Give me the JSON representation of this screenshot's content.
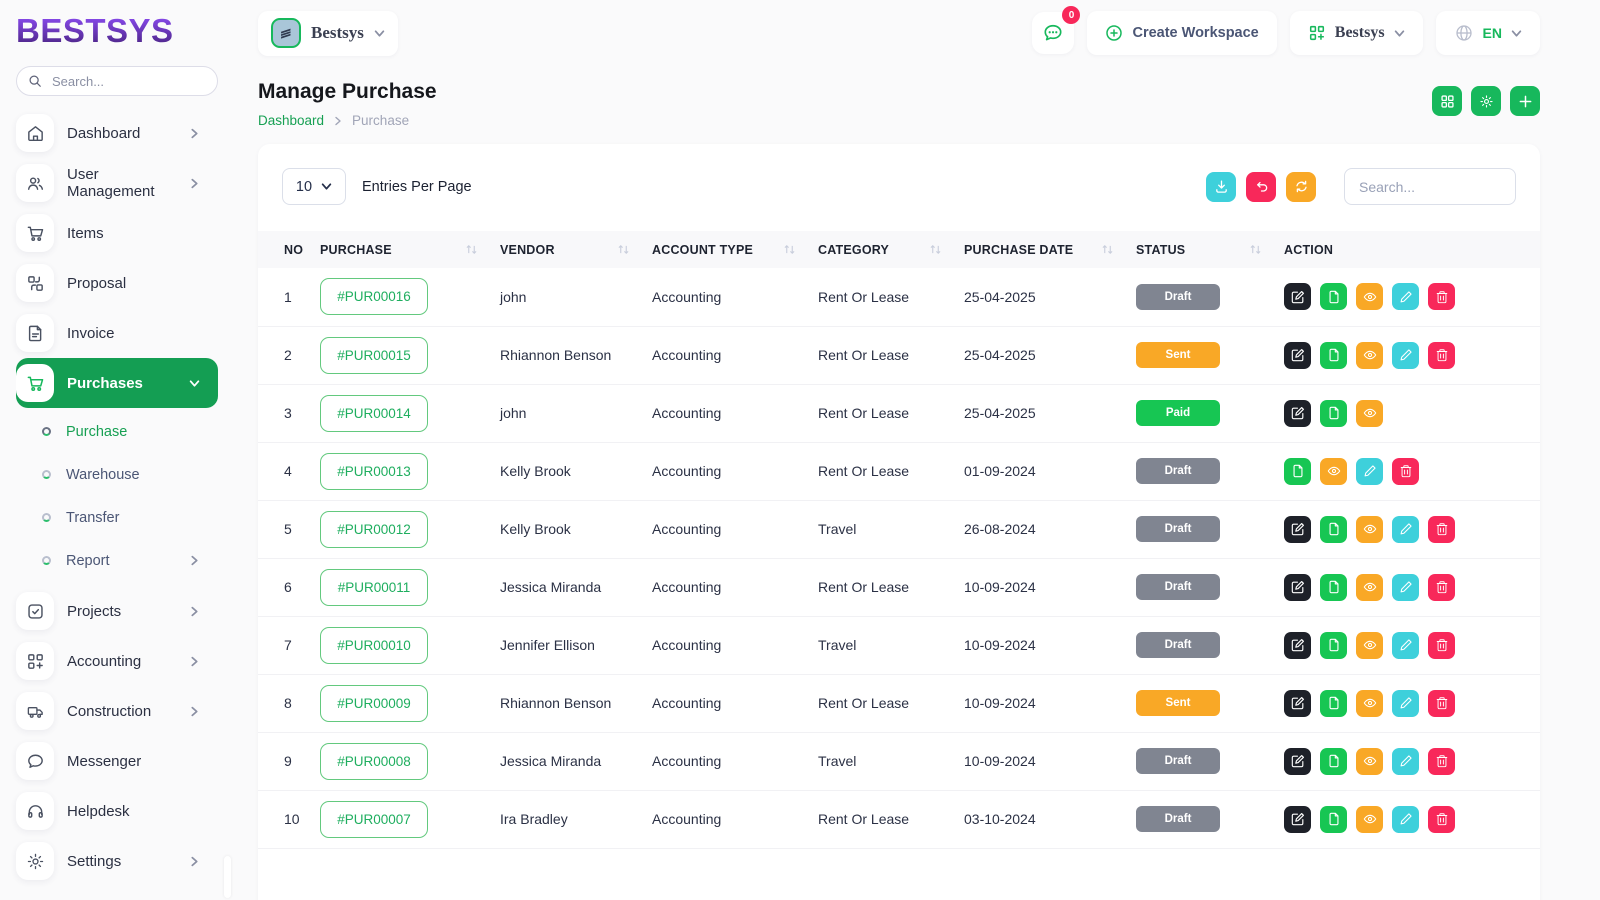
{
  "brand": {
    "logo_text": "BESTSYS"
  },
  "sidebar": {
    "search_placeholder": "Search...",
    "menu": [
      {
        "label": "Dashboard",
        "icon": "home-icon",
        "chevron": "right"
      },
      {
        "label": "User Management",
        "icon": "users-icon",
        "chevron": "right"
      },
      {
        "label": "Items",
        "icon": "cart-icon",
        "chevron": ""
      },
      {
        "label": "Proposal",
        "icon": "proposal-icon",
        "chevron": ""
      },
      {
        "label": "Invoice",
        "icon": "invoice-icon",
        "chevron": ""
      },
      {
        "label": "Purchases",
        "icon": "cart-icon",
        "chevron": "down",
        "active": true
      },
      {
        "label": "Projects",
        "icon": "check-square-icon",
        "chevron": "right"
      },
      {
        "label": "Accounting",
        "icon": "grid-plus-icon",
        "chevron": "right"
      },
      {
        "label": "Construction",
        "icon": "truck-icon",
        "chevron": "right"
      },
      {
        "label": "Messenger",
        "icon": "chat-icon",
        "chevron": ""
      },
      {
        "label": "Helpdesk",
        "icon": "headphones-icon",
        "chevron": ""
      },
      {
        "label": "Settings",
        "icon": "gear-icon",
        "chevron": "right"
      }
    ],
    "purchases_submenu": [
      {
        "label": "Purchase",
        "active": true
      },
      {
        "label": "Warehouse",
        "active": false
      },
      {
        "label": "Transfer",
        "active": false
      },
      {
        "label": "Report",
        "active": false,
        "chevron": "right"
      }
    ]
  },
  "topbar": {
    "workspace_name": "Bestsys",
    "chat_badge": "0",
    "create_workspace_label": "Create Workspace",
    "org_name": "Bestsys",
    "language": "EN"
  },
  "page": {
    "title": "Manage Purchase",
    "breadcrumb": {
      "root": "Dashboard",
      "current": "Purchase"
    }
  },
  "card": {
    "entries_value": "10",
    "entries_label": "Entries Per Page",
    "search_placeholder": "Search..."
  },
  "table": {
    "columns": [
      {
        "label": "NO",
        "sortable": false
      },
      {
        "label": "PURCHASE",
        "sortable": true
      },
      {
        "label": "VENDOR",
        "sortable": true
      },
      {
        "label": "ACCOUNT TYPE",
        "sortable": true
      },
      {
        "label": "CATEGORY",
        "sortable": true
      },
      {
        "label": "PURCHASE DATE",
        "sortable": true
      },
      {
        "label": "STATUS",
        "sortable": true
      },
      {
        "label": "ACTION",
        "sortable": false
      }
    ],
    "rows": [
      {
        "no": "1",
        "purchase": "#PUR00016",
        "vendor": "john",
        "account_type": "Accounting",
        "category": "Rent Or Lease",
        "purchase_date": "25-04-2025",
        "status": "Draft",
        "status_type": "draft",
        "actions": [
          "edit",
          "document",
          "view",
          "pencil",
          "delete"
        ]
      },
      {
        "no": "2",
        "purchase": "#PUR00015",
        "vendor": "Rhiannon Benson",
        "account_type": "Accounting",
        "category": "Rent Or Lease",
        "purchase_date": "25-04-2025",
        "status": "Sent",
        "status_type": "sent",
        "actions": [
          "edit",
          "document",
          "view",
          "pencil",
          "delete"
        ]
      },
      {
        "no": "3",
        "purchase": "#PUR00014",
        "vendor": "john",
        "account_type": "Accounting",
        "category": "Rent Or Lease",
        "purchase_date": "25-04-2025",
        "status": "Paid",
        "status_type": "paid",
        "actions": [
          "edit",
          "document",
          "view"
        ]
      },
      {
        "no": "4",
        "purchase": "#PUR00013",
        "vendor": "Kelly Brook",
        "account_type": "Accounting",
        "category": "Rent Or Lease",
        "purchase_date": "01-09-2024",
        "status": "Draft",
        "status_type": "draft",
        "actions": [
          "document",
          "view",
          "pencil",
          "delete"
        ]
      },
      {
        "no": "5",
        "purchase": "#PUR00012",
        "vendor": "Kelly Brook",
        "account_type": "Accounting",
        "category": "Travel",
        "purchase_date": "26-08-2024",
        "status": "Draft",
        "status_type": "draft",
        "actions": [
          "edit",
          "document",
          "view",
          "pencil",
          "delete"
        ]
      },
      {
        "no": "6",
        "purchase": "#PUR00011",
        "vendor": "Jessica Miranda",
        "account_type": "Accounting",
        "category": "Rent Or Lease",
        "purchase_date": "10-09-2024",
        "status": "Draft",
        "status_type": "draft",
        "actions": [
          "edit",
          "document",
          "view",
          "pencil",
          "delete"
        ]
      },
      {
        "no": "7",
        "purchase": "#PUR00010",
        "vendor": "Jennifer Ellison",
        "account_type": "Accounting",
        "category": "Travel",
        "purchase_date": "10-09-2024",
        "status": "Draft",
        "status_type": "draft",
        "actions": [
          "edit",
          "document",
          "view",
          "pencil",
          "delete"
        ]
      },
      {
        "no": "8",
        "purchase": "#PUR00009",
        "vendor": "Rhiannon Benson",
        "account_type": "Accounting",
        "category": "Rent Or Lease",
        "purchase_date": "10-09-2024",
        "status": "Sent",
        "status_type": "sent",
        "actions": [
          "edit",
          "document",
          "view",
          "pencil",
          "delete"
        ]
      },
      {
        "no": "9",
        "purchase": "#PUR00008",
        "vendor": "Jessica Miranda",
        "account_type": "Accounting",
        "category": "Travel",
        "purchase_date": "10-09-2024",
        "status": "Draft",
        "status_type": "draft",
        "actions": [
          "edit",
          "document",
          "view",
          "pencil",
          "delete"
        ]
      },
      {
        "no": "10",
        "purchase": "#PUR00007",
        "vendor": "Ira Bradley",
        "account_type": "Accounting",
        "category": "Rent Or Lease",
        "purchase_date": "03-10-2024",
        "status": "Draft",
        "status_type": "draft",
        "actions": [
          "edit",
          "document",
          "view",
          "pencil",
          "delete"
        ]
      }
    ]
  },
  "colors": {
    "accent_green": "#17C653",
    "sidebar_active_green": "#149E53",
    "orange": "#F9A826",
    "cyan": "#3ED0DB",
    "pink": "#F8285A",
    "dark": "#1E2129",
    "gray_badge": "#808591",
    "logo_purple_top": "#8A4BEF",
    "logo_purple_bottom": "#47227E"
  }
}
